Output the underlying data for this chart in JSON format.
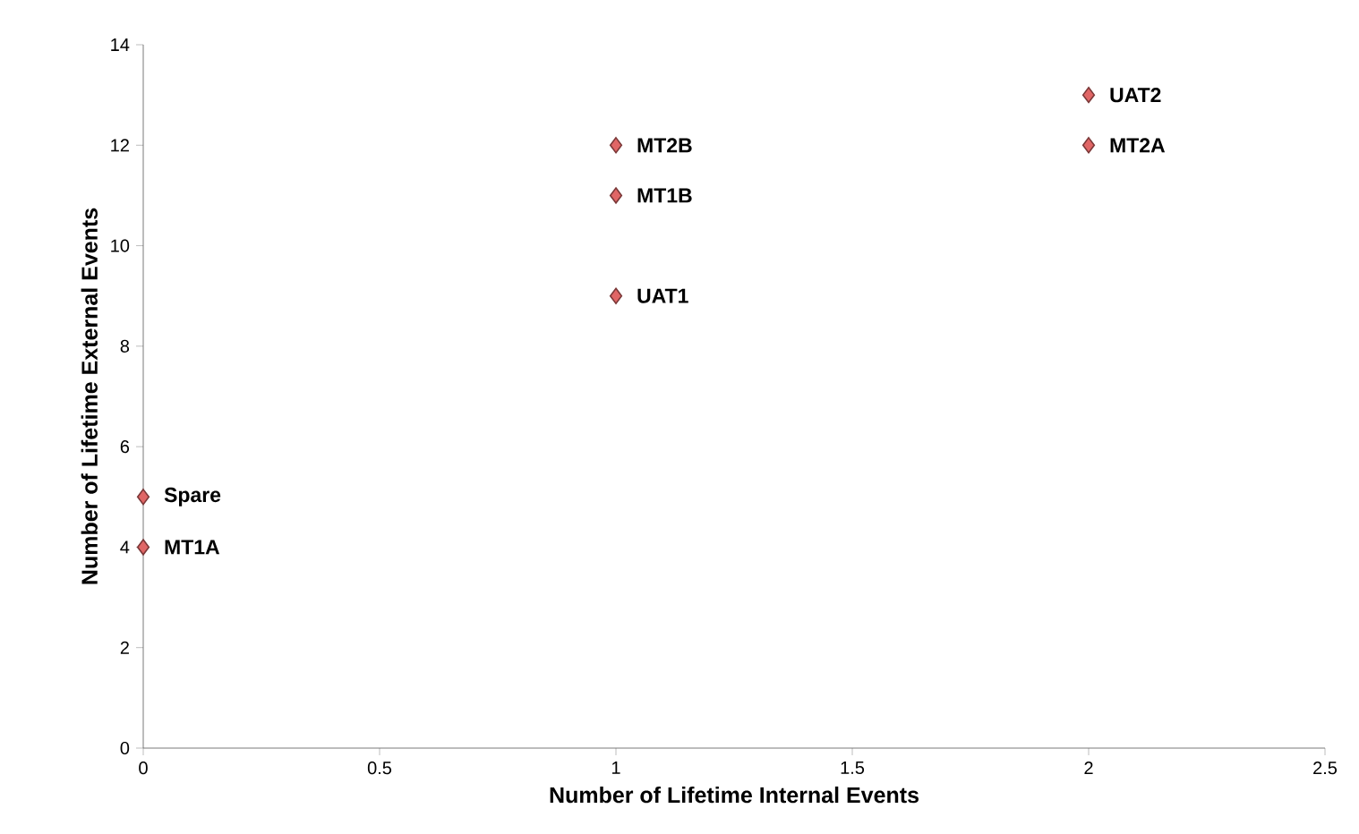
{
  "chart_data": {
    "type": "scatter",
    "xlabel": "Number of Lifetime Internal Events",
    "ylabel": "Number of Lifetime External Events",
    "x": [
      0,
      0,
      1,
      1,
      1,
      2,
      2
    ],
    "series": [
      {
        "color": "#e06666",
        "values": [
          4,
          5,
          9,
          11,
          12,
          12,
          13
        ]
      }
    ],
    "marker": "diamond",
    "grid": false,
    "xlim": [
      0,
      2.5
    ],
    "xticks": [
      0,
      0.5,
      1,
      1.5,
      2,
      2.5
    ],
    "ylim": [
      0,
      14
    ],
    "yticks": [
      0,
      2,
      4,
      6,
      8,
      10,
      12,
      14
    ],
    "annotations": [
      {
        "text": "MT1A",
        "x": 0,
        "y": 4
      },
      {
        "text": "Spare",
        "x": 0,
        "y": 5
      },
      {
        "text": "UAT1",
        "x": 1,
        "y": 9
      },
      {
        "text": "MT1B",
        "x": 1,
        "y": 11
      },
      {
        "text": "MT2B",
        "x": 1,
        "y": 12
      },
      {
        "text": "MT2A",
        "x": 2,
        "y": 12
      },
      {
        "text": "UAT2",
        "x": 2,
        "y": 13
      }
    ]
  }
}
